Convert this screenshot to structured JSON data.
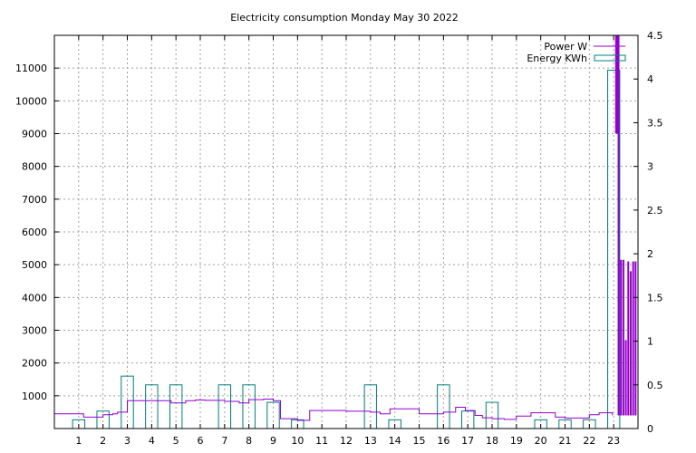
{
  "chart_data": {
    "type": "bar",
    "title": "Electricity consumption Monday May 30 2022",
    "xlabel": "",
    "ylabel": "",
    "xlim": [
      0,
      24
    ],
    "ylim": [
      0,
      12000
    ],
    "y2lim": [
      0,
      4.5
    ],
    "grid": true,
    "legend_position": "top-right",
    "x_ticks": [
      "1",
      "2",
      "3",
      "4",
      "5",
      "6",
      "7",
      "8",
      "9",
      "10",
      "11",
      "12",
      "13",
      "14",
      "15",
      "16",
      "17",
      "18",
      "19",
      "20",
      "21",
      "22",
      "23"
    ],
    "y_ticks": [
      "1000",
      "2000",
      "3000",
      "4000",
      "5000",
      "6000",
      "7000",
      "8000",
      "9000",
      "10000",
      "11000"
    ],
    "y2_ticks": [
      "0",
      "0.5",
      "1",
      "1.5",
      "2",
      "2.5",
      "3",
      "3.5",
      "4",
      "4.5"
    ],
    "series": [
      {
        "name": "Power W",
        "axis": "y",
        "color": "#9400d3",
        "x": [
          0,
          1,
          1.2,
          2,
          2.4,
          2.6,
          3,
          4,
          4.8,
          5.4,
          5.8,
          6.2,
          7,
          7.6,
          8,
          8.6,
          9,
          9.3,
          10,
          10.5,
          11,
          12,
          13,
          13.4,
          13.8,
          14,
          14.5,
          15,
          15.6,
          16,
          16.5,
          16.9,
          17.3,
          17.6,
          18,
          18.5,
          19,
          19.6,
          20,
          20.6,
          21,
          21.6,
          22,
          22.4,
          22.8,
          22.95
        ],
        "y": [
          450,
          450,
          350,
          420,
          450,
          500,
          850,
          850,
          780,
          850,
          870,
          860,
          830,
          780,
          880,
          900,
          850,
          300,
          250,
          550,
          550,
          530,
          500,
          450,
          600,
          600,
          600,
          450,
          450,
          500,
          650,
          550,
          400,
          330,
          300,
          280,
          380,
          480,
          480,
          350,
          320,
          320,
          420,
          480,
          480,
          400
        ],
        "spikes": [
          {
            "x": 23.1,
            "y_low": 9000,
            "y_high": 12000
          },
          {
            "x": 23.15,
            "y_low": 9000,
            "y_high": 12000
          },
          {
            "x": 23.2,
            "y_low": 400,
            "y_high": 12000
          },
          {
            "x": 23.3,
            "y_low": 400,
            "y_high": 5150
          },
          {
            "x": 23.4,
            "y_low": 400,
            "y_high": 5150
          },
          {
            "x": 23.5,
            "y_low": 400,
            "y_high": 2700
          },
          {
            "x": 23.6,
            "y_low": 400,
            "y_high": 5100
          },
          {
            "x": 23.7,
            "y_low": 400,
            "y_high": 4800
          },
          {
            "x": 23.8,
            "y_low": 400,
            "y_high": 5100
          },
          {
            "x": 23.9,
            "y_low": 400,
            "y_high": 5100
          }
        ]
      },
      {
        "name": "Energy KWh",
        "axis": "y2",
        "color": "#008080",
        "categories": [
          1,
          2,
          3,
          4,
          5,
          6,
          7,
          8,
          9,
          10,
          11,
          12,
          13,
          14,
          15,
          16,
          17,
          18,
          19,
          20,
          21,
          22,
          23
        ],
        "values": [
          0.1,
          0.2,
          0.6,
          0.5,
          0.5,
          0,
          0.5,
          0.5,
          0.3,
          0.1,
          0,
          0,
          0.5,
          0.1,
          0,
          0.5,
          0.2,
          0.3,
          0,
          0.1,
          0.1,
          0.1,
          4.1
        ]
      }
    ]
  }
}
